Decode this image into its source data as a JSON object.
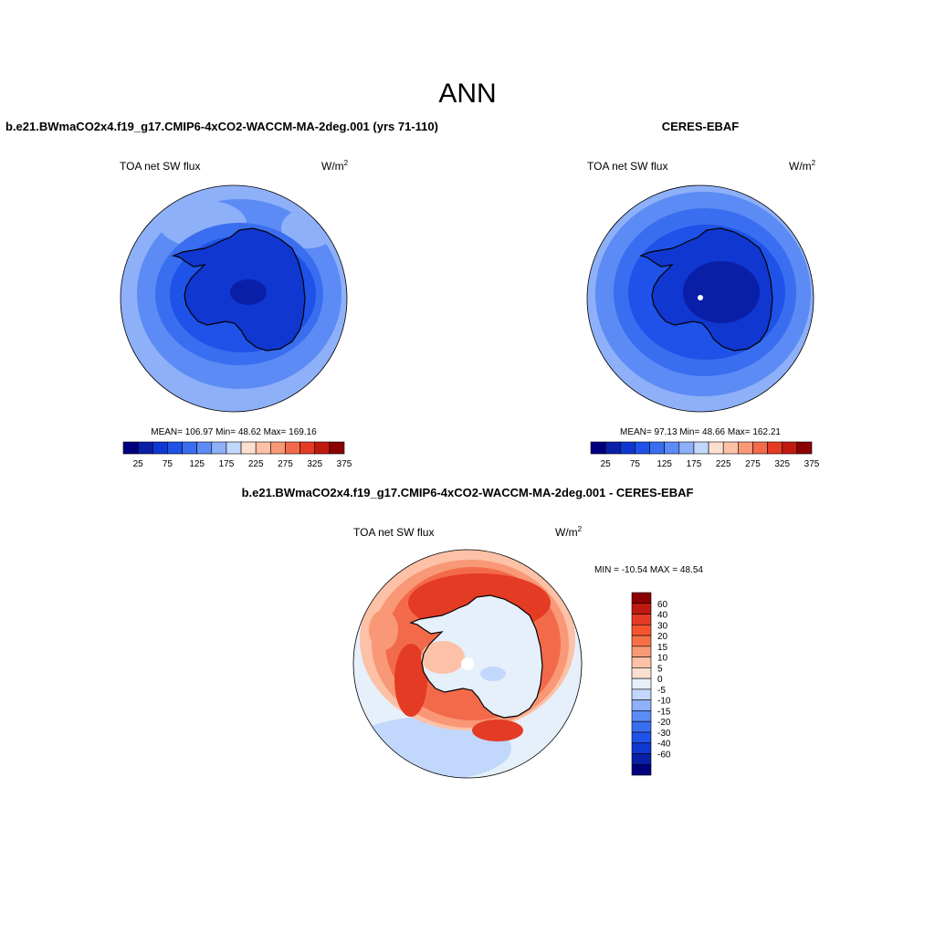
{
  "title": "ANN",
  "panels": [
    {
      "id": "model",
      "header": "b.e21.BWmaCO2x4.f19_g17.CMIP6-4xCO2-WACCM-MA-2deg.001 (yrs 71-110)",
      "variable": "TOA net SW flux",
      "units_base": "W/m",
      "units_exp": "2",
      "stats": "MEAN= 106.97  Min=  48.62  Max= 169.16"
    },
    {
      "id": "obs",
      "header": "CERES-EBAF",
      "variable": "TOA net SW flux",
      "units_base": "W/m",
      "units_exp": "2",
      "stats": "MEAN=  97.13  Min=  48.66  Max= 162.21"
    },
    {
      "id": "diff",
      "header": "b.e21.BWmaCO2x4.f19_g17.CMIP6-4xCO2-WACCM-MA-2deg.001 - CERES-EBAF",
      "variable": "TOA net SW flux",
      "units_base": "W/m",
      "units_exp": "2",
      "stats": "MIN = -10.54 MAX =  48.54"
    }
  ],
  "colorbar_abs": {
    "colors": [
      "#00007f",
      "#0a1fa8",
      "#1037d0",
      "#1e52e8",
      "#3a6ef0",
      "#5c8bf5",
      "#8eb0f8",
      "#c1d7fb",
      "#fbe0d2",
      "#fcc1a6",
      "#f99876",
      "#f36a4a",
      "#e43b25",
      "#bf1a10",
      "#8b0000"
    ],
    "labels": [
      "25",
      "75",
      "125",
      "175",
      "225",
      "275",
      "325",
      "375"
    ]
  },
  "colorbar_diff": {
    "colors": [
      "#8b0000",
      "#bf1a10",
      "#e43b25",
      "#f5542e",
      "#f67148",
      "#f99876",
      "#fcc1a6",
      "#fbe0d2",
      "#e6f0fb",
      "#c1d7fb",
      "#8eb0f8",
      "#5c8bf5",
      "#3a6ef0",
      "#1e52e8",
      "#1037d0",
      "#0a1fa8",
      "#00007f"
    ],
    "labels": [
      "60",
      "40",
      "30",
      "20",
      "15",
      "10",
      "5",
      "0",
      "-5",
      "-10",
      "-15",
      "-20",
      "-30",
      "-40",
      "-60"
    ]
  },
  "map_colors": {
    "abs_outer": "#8eb0f8",
    "abs_mid": "#5c8bf5",
    "abs_inner": "#3a6ef0",
    "abs_ring": "#1e52e8",
    "abs_land": "#1037d0",
    "abs_low": "#0a1fa8",
    "diff_bg": "#e6f0fb",
    "diff_pale": "#c1d7fb",
    "diff_peach": "#fcc1a6",
    "diff_salmon": "#f99876",
    "diff_orange": "#f36a4a",
    "diff_red": "#e43b25"
  }
}
